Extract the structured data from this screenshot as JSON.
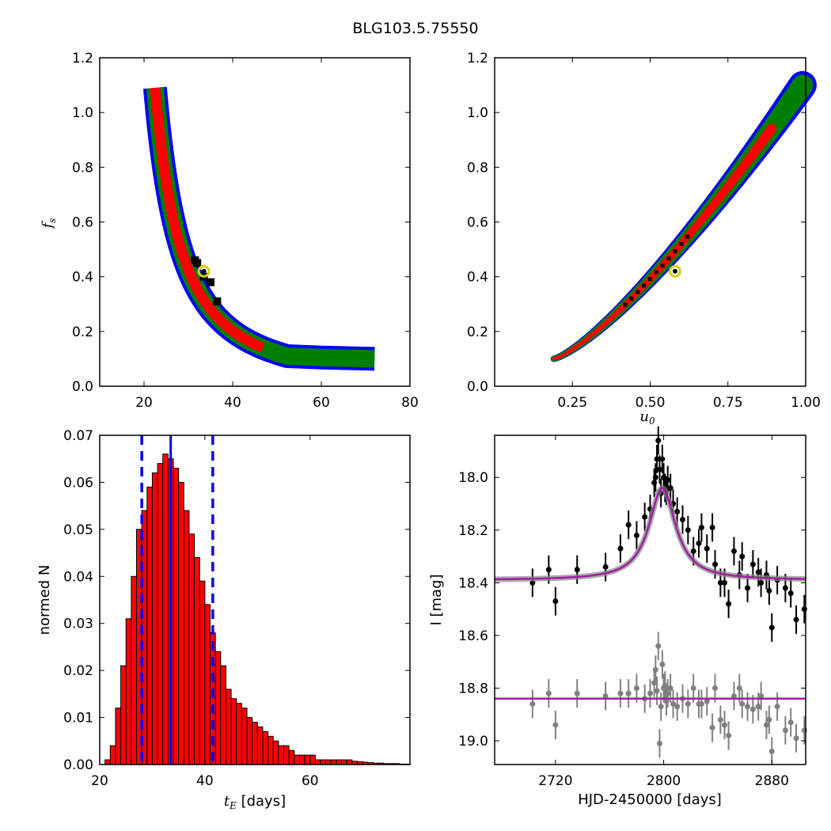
{
  "title": "BLG103.5.75550",
  "panels": {
    "fs_vs_tE": {
      "ylabel_main": "f",
      "ylabel_sub": "s",
      "xlim": [
        10,
        80
      ],
      "ylim": [
        0.0,
        1.2
      ],
      "xticks": [
        "20",
        "40",
        "60",
        "80"
      ],
      "yticks": [
        "0.0",
        "0.2",
        "0.4",
        "0.6",
        "0.8",
        "1.0",
        "1.2"
      ],
      "best_fit": {
        "x": 33.5,
        "y": 0.42
      },
      "colors": {
        "outer": "#0000ff",
        "middle": "#007f00",
        "inner": "#ff0000",
        "core": "#000000",
        "marker": "#d4d400"
      }
    },
    "fs_vs_u0": {
      "xlabel_main": "u",
      "xlabel_sub": "0",
      "xlim": [
        0.0,
        1.0
      ],
      "ylim": [
        0.0,
        1.2
      ],
      "xticks": [
        "0.25",
        "0.50",
        "0.75",
        "1.00"
      ],
      "yticks": [
        "0.0",
        "0.2",
        "0.4",
        "0.6",
        "0.8",
        "1.0",
        "1.2"
      ],
      "best_fit": {
        "x": 0.58,
        "y": 0.42
      }
    },
    "hist_tE": {
      "xlabel_main": "t",
      "xlabel_sub": "E",
      "xlabel_rest": " [days]",
      "ylabel": "normed N",
      "xlim": [
        20,
        79
      ],
      "ylim": [
        0.0,
        0.07
      ],
      "xticks": [
        "20",
        "40",
        "60"
      ],
      "yticks": [
        "0.00",
        "0.01",
        "0.02",
        "0.03",
        "0.04",
        "0.05",
        "0.06",
        "0.07"
      ],
      "median": 33.5,
      "lower": 28.0,
      "upper": 41.5,
      "bar_color": "#ff0000",
      "line_color": "#0000ff"
    },
    "light_curve": {
      "xlabel": "HJD-2450000 [days]",
      "ylabel": "I [mag]",
      "xlim": [
        2675,
        2905
      ],
      "ylim": [
        19.09,
        17.84
      ],
      "xticks": [
        "2720",
        "2800",
        "2880"
      ],
      "yticks": [
        "18.0",
        "18.2",
        "18.4",
        "18.6",
        "18.8",
        "19.0"
      ],
      "model_color": "#9f1f9f",
      "data_color": "#000000",
      "residual_color": "#808080"
    }
  },
  "chart_data": [
    {
      "type": "heatmap",
      "xlim": [
        10,
        80
      ],
      "ylim": [
        0.0,
        1.2
      ],
      "ylabel": "f_s",
      "best_fit": {
        "tE": 33.5,
        "fs": 0.42
      }
    },
    {
      "type": "heatmap",
      "xlabel": "u_0",
      "xlim": [
        0.0,
        1.0
      ],
      "ylim": [
        0.0,
        1.2
      ],
      "ylabel": "f_s",
      "best_fit": {
        "u0": 0.58,
        "fs": 0.42
      }
    },
    {
      "type": "bar",
      "xlabel": "t_E [days]",
      "ylabel": "normed N",
      "xlim": [
        20,
        79
      ],
      "ylim": [
        0.0,
        0.07
      ],
      "bin_start": 21,
      "bin_width": 1,
      "values": [
        0.001,
        0.004,
        0.012,
        0.021,
        0.031,
        0.04,
        0.05,
        0.054,
        0.059,
        0.062,
        0.064,
        0.066,
        0.065,
        0.063,
        0.06,
        0.054,
        0.049,
        0.044,
        0.039,
        0.034,
        0.028,
        0.024,
        0.021,
        0.016,
        0.014,
        0.013,
        0.012,
        0.01,
        0.009,
        0.008,
        0.007,
        0.006,
        0.005,
        0.004,
        0.004,
        0.003,
        0.002,
        0.002,
        0.002,
        0.002,
        0.001,
        0.001,
        0.001,
        0.001,
        0.001,
        0.001,
        0.001,
        0.0007,
        0.0006,
        0.0005,
        0.0004,
        0.0003,
        0.0003,
        0.0002,
        0.0002,
        0.0002,
        0.0001,
        0.0001
      ],
      "vlines": {
        "median": 33.5,
        "lower": 28.0,
        "upper": 41.5
      }
    },
    {
      "type": "scatter",
      "xlabel": "HJD-2450000 [days]",
      "ylabel": "I [mag]",
      "xlim": [
        2675,
        2905
      ],
      "ylim": [
        19.09,
        17.84
      ],
      "model": {
        "t0": 2799,
        "baseline": 18.39,
        "peak": 18.04,
        "width": 12
      },
      "residual_baseline": 18.84,
      "series": [
        {
          "x": [
            2703,
            2715,
            2720,
            2736,
            2757,
            2768,
            2774,
            2780,
            2786,
            2790,
            2793,
            2794,
            2795,
            2796,
            2797,
            2798,
            2799,
            2800,
            2801,
            2802,
            2803,
            2805,
            2807,
            2810,
            2814,
            2818,
            2822,
            2826,
            2828,
            2832,
            2836,
            2838,
            2842,
            2845,
            2848,
            2852,
            2856,
            2858,
            2862,
            2866,
            2870,
            2872,
            2876,
            2878,
            2880,
            2884,
            2890,
            2894,
            2898,
            2904
          ],
          "y": [
            18.4,
            18.35,
            18.47,
            18.35,
            18.34,
            18.27,
            18.18,
            18.22,
            18.15,
            18.12,
            18.02,
            18.0,
            17.93,
            17.86,
            17.97,
            18.06,
            17.93,
            18.0,
            18.04,
            18.05,
            18.01,
            18.04,
            18.1,
            18.13,
            18.16,
            18.2,
            18.28,
            18.25,
            18.19,
            18.27,
            18.19,
            18.33,
            18.4,
            18.4,
            18.48,
            18.28,
            18.37,
            18.3,
            18.42,
            18.33,
            18.36,
            18.4,
            18.37,
            18.43,
            18.57,
            18.39,
            18.42,
            18.44,
            18.54,
            18.5
          ]
        },
        {
          "x": [
            2703,
            2715,
            2720,
            2736,
            2757,
            2768,
            2774,
            2780,
            2786,
            2790,
            2793,
            2794,
            2795,
            2796,
            2797,
            2798,
            2799,
            2800,
            2801,
            2802,
            2803,
            2805,
            2807,
            2810,
            2814,
            2818,
            2822,
            2826,
            2828,
            2832,
            2836,
            2838,
            2842,
            2845,
            2848,
            2852,
            2856,
            2858,
            2862,
            2866,
            2870,
            2872,
            2876,
            2878,
            2880,
            2884,
            2890,
            2894,
            2898,
            2904
          ],
          "y": [
            18.86,
            18.82,
            18.94,
            18.82,
            18.83,
            18.82,
            18.82,
            18.8,
            18.84,
            18.82,
            18.78,
            18.73,
            18.81,
            18.64,
            19.01,
            18.87,
            18.71,
            18.8,
            18.79,
            18.85,
            18.82,
            18.8,
            18.86,
            18.87,
            18.84,
            18.86,
            18.8,
            18.86,
            18.86,
            18.85,
            18.95,
            18.8,
            18.92,
            18.94,
            18.98,
            18.83,
            18.8,
            18.86,
            18.87,
            18.88,
            18.87,
            18.83,
            18.94,
            18.92,
            19.04,
            18.87,
            18.96,
            18.93,
            18.99,
            18.96
          ]
        }
      ]
    }
  ]
}
